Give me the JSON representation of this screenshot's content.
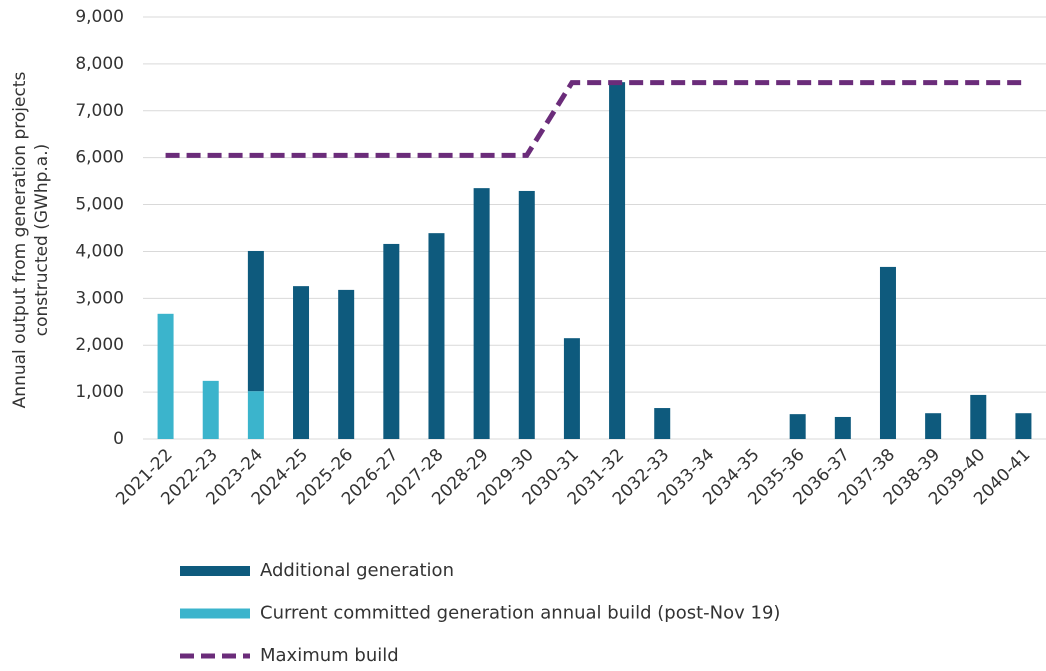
{
  "chart_data": {
    "type": "bar",
    "stacked": true,
    "ylabel": [
      "Annual output from generation projects",
      "constructed (GWhp.a.)"
    ],
    "categories": [
      "2021-22",
      "2022-23",
      "2023-24",
      "2024-25",
      "2025-26",
      "2026-27",
      "2027-28",
      "2028-29",
      "2029-30",
      "2030-31",
      "2031-32",
      "2032-33",
      "2033-34",
      "2034-35",
      "2035-36",
      "2036-37",
      "2037-38",
      "2038-39",
      "2039-40",
      "2040-41"
    ],
    "series": [
      {
        "name": "Additional generation",
        "type": "bar",
        "color": "#0e5a7d",
        "values": [
          0,
          0,
          2990,
          3260,
          3180,
          4160,
          4390,
          5350,
          5290,
          2150,
          7610,
          660,
          0,
          0,
          530,
          470,
          3670,
          550,
          940,
          550
        ]
      },
      {
        "name": "Current committed generation annual build (post-Nov 19)",
        "type": "bar",
        "color": "#3bb4cc",
        "values": [
          2670,
          1240,
          1020,
          0,
          0,
          0,
          0,
          0,
          0,
          0,
          0,
          0,
          0,
          0,
          0,
          0,
          0,
          0,
          0,
          0
        ]
      },
      {
        "name": "Maximum build",
        "type": "line",
        "color": "#6b2c7a",
        "dashed": true,
        "values": [
          6050,
          6050,
          6050,
          6050,
          6050,
          6050,
          6050,
          6050,
          6050,
          7600,
          7600,
          7600,
          7600,
          7600,
          7600,
          7600,
          7600,
          7600,
          7600,
          7600
        ]
      }
    ],
    "ylim": [
      0,
      9000
    ],
    "yticks": [
      0,
      {
        "value": 1000,
        "label": "1,000"
      },
      {
        "value": 2000,
        "label": "2,000"
      },
      {
        "value": 3000,
        "label": "3,000"
      },
      {
        "value": 4000,
        "label": "4,000"
      },
      {
        "value": 5000,
        "label": "5,000"
      },
      {
        "value": 6000,
        "label": "6,000"
      },
      {
        "value": 7000,
        "label": "7,000"
      },
      {
        "value": 8000,
        "label": "8,000"
      },
      {
        "value": 9000,
        "label": "9,000"
      }
    ],
    "grid": true,
    "legend": "bottom"
  }
}
